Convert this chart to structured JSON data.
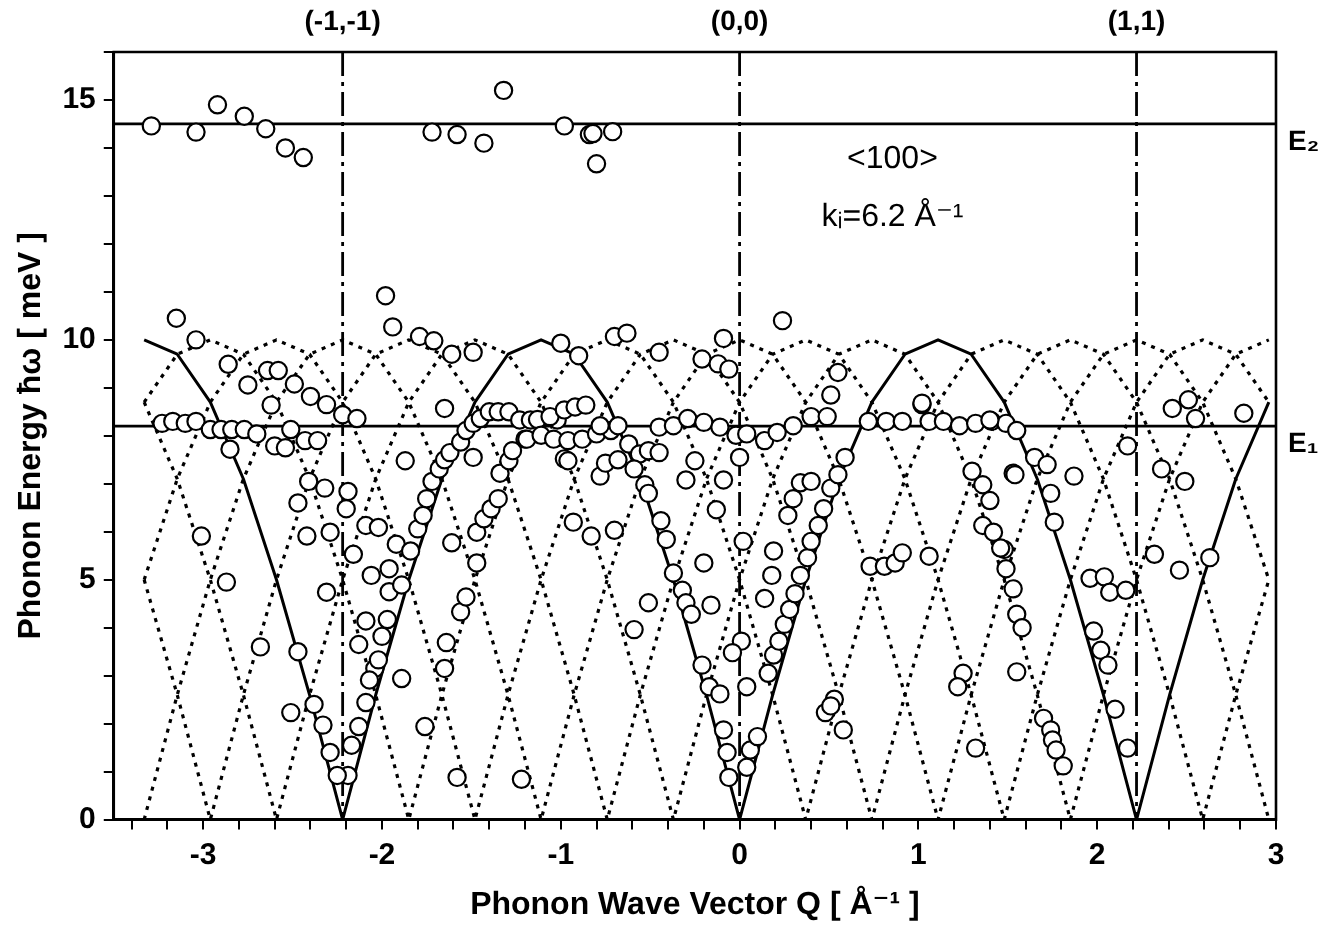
{
  "chart_data": {
    "type": "scatter",
    "xlabel": "Phonon Wave Vector Q [ Å⁻¹ ]",
    "ylabel": "Phonon Energy ħω [ meV ]",
    "annotations": [
      "<100>",
      "kᵢ=6.2 Å⁻¹",
      {
        "text": "(-1,-1)",
        "x": -2.22,
        "y": 16
      },
      {
        "text": "(0,0)",
        "x": 0,
        "y": 16
      },
      {
        "text": "(1,1)",
        "x": 2.22,
        "y": 16
      }
    ],
    "xlim": [
      -3.5,
      3
    ],
    "ylim": [
      0,
      16
    ],
    "xticks": [
      {
        "value": -3.4,
        "label": null
      },
      {
        "value": -3.2,
        "label": null
      },
      -3,
      {
        "value": -2.8,
        "label": null
      },
      {
        "value": -2.6,
        "label": null
      },
      {
        "value": -2.4,
        "label": null
      },
      {
        "value": -2.2,
        "label": null
      },
      -2,
      {
        "value": -1.8,
        "label": null
      },
      {
        "value": -1.6,
        "label": null
      },
      {
        "value": -1.4,
        "label": null
      },
      {
        "value": -1.2,
        "label": null
      },
      -1,
      {
        "value": -0.8,
        "label": null
      },
      {
        "value": -0.6,
        "label": null
      },
      {
        "value": -0.4,
        "label": null
      },
      {
        "value": -0.2,
        "label": null
      },
      0,
      {
        "value": 0.2,
        "label": null
      },
      {
        "value": 0.4,
        "label": null
      },
      {
        "value": 0.6,
        "label": null
      },
      {
        "value": 0.8,
        "label": null
      },
      1,
      {
        "value": 1.2,
        "label": null
      },
      {
        "value": 1.4,
        "label": null
      },
      {
        "value": 1.6,
        "label": null
      },
      {
        "value": 1.8,
        "label": null
      },
      2,
      {
        "value": 2.2,
        "label": null
      },
      {
        "value": 2.4,
        "label": null
      },
      {
        "value": 2.6,
        "label": null
      },
      {
        "value": 2.8,
        "label": null
      },
      3
    ],
    "yticks": [
      0,
      {
        "value": 1,
        "label": null
      },
      {
        "value": 2,
        "label": null
      },
      {
        "value": 3,
        "label": null
      },
      {
        "value": 4,
        "label": null
      },
      5,
      {
        "value": 6,
        "label": null
      },
      {
        "value": 7,
        "label": null
      },
      {
        "value": 8,
        "label": null
      },
      {
        "value": 9,
        "label": null
      },
      10,
      {
        "value": 11,
        "label": null
      },
      {
        "value": 12,
        "label": null
      },
      {
        "value": 13,
        "label": null
      },
      {
        "value": 14,
        "label": null
      },
      15,
      {
        "value": 16,
        "label": null
      }
    ],
    "grid": false,
    "legend": false,
    "marker": "circle",
    "ref_lines": [
      {
        "axis": "x",
        "value": -2.22,
        "line_style": "dashed",
        "color": "#000000"
      },
      {
        "axis": "x",
        "value": 0,
        "line_style": "dashed",
        "color": "#000000"
      },
      {
        "axis": "x",
        "value": 2.22,
        "line_style": "dashed",
        "color": "#000000"
      },
      {
        "axis": "y",
        "value": 14.5,
        "label": "E₂",
        "line_style": "solid",
        "color": "#000000"
      },
      {
        "axis": "y",
        "value": 8.2,
        "label": "E₁",
        "line_style": "solid",
        "color": "#000000"
      }
    ],
    "x": [
      -3.33,
      -3.145,
      -2.96,
      -2.775,
      -2.59,
      -2.405,
      -2.22,
      -2.035,
      -1.85,
      -1.665,
      -1.48,
      -1.295,
      -1.11,
      -0.925,
      -0.74,
      -0.555,
      -0.37,
      -0.185,
      0,
      0.185,
      0.37,
      0.555,
      0.74,
      0.925,
      1.11,
      1.295,
      1.48,
      1.665,
      1.85,
      2.035,
      2.22,
      2.405,
      2.59,
      2.775,
      2.96
    ],
    "series": [
      {
        "type": "scatter",
        "color": "#000000",
        "x": [
          -3.29,
          -3.04,
          -2.92,
          -2.77,
          -2.65,
          -2.54,
          -2.44,
          -1.72,
          -1.58,
          -1.43,
          -1.32,
          -0.98,
          -0.84,
          -0.82,
          -0.71,
          -0.8,
          -3.15,
          -3.04,
          -2.86,
          -2.75,
          -2.64,
          -2.58,
          -2.62,
          -2.49,
          -2.4,
          -2.31,
          -2.22,
          -2.14,
          -1.98,
          -1.94,
          -1.79,
          -1.71,
          -1.61,
          -1.49,
          -1.65,
          -1.0,
          -0.9,
          -0.7,
          -0.63,
          -0.45,
          -0.21,
          -0.12,
          -0.06,
          -0.09,
          0.24,
          0.55,
          0.51,
          1.02,
          2.42,
          2.51,
          2.55,
          2.82,
          -3.23,
          -3.17,
          -3.1,
          -3.04,
          -2.96,
          -2.9,
          -2.84,
          -2.77,
          -2.7,
          -2.6,
          -2.54,
          -2.51,
          -2.43,
          -2.36,
          -2.41,
          -2.32,
          -2.47,
          -2.42,
          -2.29,
          -2.19,
          -2.2,
          -2.31,
          -2.16,
          -2.09,
          -2.02,
          -2.06,
          -2.09,
          -2.13,
          -2.04,
          -2.07,
          -2.09,
          -2.13,
          -2.17,
          -2.19,
          -2.25,
          -2.29,
          -2.33,
          -2.38,
          -2.47,
          -2.51,
          -2.68,
          -2.87,
          -3.01,
          -2.85,
          -1.96,
          -1.97,
          -2.0,
          -2.02,
          -1.96,
          -1.92,
          -1.89,
          -1.84,
          -1.8,
          -1.77,
          -1.75,
          -1.72,
          -1.68,
          -1.65,
          -1.62,
          -1.56,
          -1.53,
          -1.49,
          -1.45,
          -1.4,
          -1.35,
          -1.29,
          -1.23,
          -1.17,
          -1.02,
          -1.89,
          -1.76,
          -1.65,
          -1.64,
          -1.56,
          -1.53,
          -1.47,
          -1.47,
          -1.43,
          -1.39,
          -1.35,
          -1.34,
          -1.29,
          -1.27,
          -1.2,
          -1.49,
          -1.61,
          -1.58,
          -1.22,
          -0.98,
          -1.87,
          -1.13,
          -1.06,
          -0.98,
          -0.92,
          -0.86,
          -1.19,
          -1.11,
          -1.04,
          -0.96,
          -0.88,
          -0.8,
          -0.72,
          -0.78,
          -0.68,
          -0.62,
          -0.56,
          -0.51,
          -0.45,
          -0.45,
          -0.37,
          -0.29,
          -0.2,
          -0.11,
          -0.02,
          0.04,
          0.14,
          0.21,
          0.3,
          0.4,
          0.49,
          0.72,
          0.82,
          0.91,
          1.06,
          1.14,
          1.23,
          1.32,
          1.41,
          1.49,
          1.02,
          -0.96,
          -0.78,
          -0.75,
          -0.68,
          -0.93,
          -0.83,
          -0.7,
          -0.59,
          -0.53,
          -0.51,
          -0.44,
          -0.41,
          -0.37,
          -0.32,
          -0.3,
          -0.27,
          -0.21,
          -0.17,
          -0.11,
          -0.09,
          -0.07,
          -0.06,
          0.04,
          0.06,
          0.1,
          0.04,
          0.01,
          -0.04,
          -0.16,
          -0.2,
          -0.13,
          -0.25,
          -0.3,
          -0.09,
          0.0,
          0.02,
          0.14,
          0.16,
          0.19,
          0.22,
          0.25,
          0.28,
          0.31,
          0.34,
          0.38,
          0.4,
          0.44,
          0.47,
          0.51,
          0.55,
          0.59,
          0.3,
          0.34,
          0.4,
          0.19,
          0.27,
          0.18,
          0.48,
          0.53,
          0.58,
          0.51,
          0.73,
          0.81,
          0.87,
          0.91,
          1.06,
          -0.51,
          -0.59,
          1.25,
          1.22,
          1.32,
          1.3,
          1.36,
          1.36,
          1.42,
          1.48,
          1.49,
          1.53,
          1.55,
          1.58,
          1.55,
          1.53,
          1.4,
          1.55,
          1.65,
          1.72,
          1.74,
          1.76,
          1.54,
          1.87,
          1.4,
          1.46,
          1.96,
          2.04,
          2.07,
          2.16,
          1.98,
          2.02,
          2.06,
          2.1,
          2.17,
          1.7,
          1.74,
          1.75,
          1.77,
          1.81,
          2.17,
          2.36,
          2.49,
          2.32,
          2.46,
          2.63
        ],
        "values": [
          14.46,
          14.33,
          14.9,
          14.66,
          14.4,
          14.0,
          13.8,
          14.33,
          14.28,
          14.1,
          15.2,
          14.46,
          14.28,
          14.3,
          14.34,
          13.67,
          10.45,
          10.0,
          9.49,
          9.06,
          9.36,
          9.36,
          8.64,
          9.08,
          8.82,
          8.65,
          8.44,
          8.36,
          10.92,
          10.27,
          10.07,
          9.98,
          9.7,
          9.74,
          8.57,
          9.93,
          9.67,
          10.07,
          10.14,
          9.74,
          9.6,
          9.5,
          9.39,
          10.03,
          10.4,
          9.32,
          8.85,
          8.65,
          8.57,
          8.75,
          8.36,
          8.47,
          8.26,
          8.3,
          8.26,
          8.3,
          8.13,
          8.13,
          8.13,
          8.13,
          8.04,
          7.79,
          7.75,
          8.13,
          7.9,
          7.9,
          7.05,
          6.91,
          6.6,
          5.91,
          5.99,
          6.84,
          6.48,
          4.74,
          5.53,
          6.13,
          6.09,
          5.09,
          4.14,
          3.65,
          3.15,
          2.91,
          2.44,
          1.94,
          1.55,
          0.92,
          0.92,
          1.4,
          1.97,
          2.4,
          3.5,
          2.23,
          3.6,
          4.95,
          5.91,
          7.72,
          4.75,
          4.17,
          3.82,
          3.33,
          5.23,
          5.74,
          4.89,
          5.6,
          6.06,
          6.34,
          6.69,
          7.05,
          7.31,
          7.5,
          7.65,
          7.87,
          8.11,
          8.26,
          8.36,
          8.5,
          8.5,
          8.5,
          8.33,
          8.33,
          8.33,
          2.94,
          1.94,
          3.15,
          3.69,
          4.33,
          4.64,
          5.35,
          5.99,
          6.27,
          6.48,
          6.69,
          7.22,
          7.48,
          7.69,
          7.93,
          7.55,
          5.77,
          0.88,
          0.84,
          7.52,
          7.48,
          8.34,
          8.4,
          8.54,
          8.6,
          8.64,
          7.93,
          8.01,
          7.93,
          7.9,
          7.93,
          8.04,
          8.11,
          8.21,
          8.21,
          7.83,
          7.62,
          7.69,
          7.65,
          8.18,
          8.21,
          8.36,
          8.28,
          8.18,
          8.01,
          8.04,
          7.9,
          8.07,
          8.21,
          8.4,
          8.4,
          8.3,
          8.3,
          8.3,
          8.3,
          8.3,
          8.21,
          8.26,
          8.3,
          8.26,
          8.68,
          7.48,
          7.16,
          7.43,
          7.5,
          6.2,
          5.91,
          6.03,
          7.31,
          6.98,
          6.8,
          6.23,
          5.84,
          5.14,
          4.78,
          4.52,
          4.28,
          3.22,
          2.77,
          2.62,
          1.87,
          1.4,
          0.88,
          1.09,
          1.45,
          1.73,
          2.77,
          3.72,
          3.48,
          4.47,
          5.35,
          6.46,
          7.48,
          7.08,
          7.08,
          7.55,
          5.8,
          4.61,
          3.05,
          3.43,
          3.72,
          4.07,
          4.38,
          4.71,
          5.09,
          5.46,
          5.8,
          6.13,
          6.48,
          6.91,
          7.19,
          7.55,
          6.69,
          7.02,
          7.05,
          5.6,
          6.34,
          5.09,
          2.23,
          2.51,
          1.87,
          2.37,
          5.28,
          5.28,
          5.35,
          5.56,
          5.49,
          4.52,
          3.96,
          3.05,
          2.77,
          1.49,
          7.26,
          6.98,
          6.13,
          5.99,
          5.63,
          5.23,
          4.81,
          4.28,
          4.0,
          3.08,
          7.22,
          8.33,
          8.11,
          7.55,
          7.4,
          6.8,
          6.2,
          7.19,
          7.16,
          6.65,
          5.66,
          5.03,
          5.06,
          4.74,
          4.78,
          3.93,
          3.53,
          3.22,
          2.3,
          1.49,
          2.11,
          1.87,
          1.66,
          1.45,
          1.12,
          7.79,
          7.31,
          7.05,
          5.53,
          5.2,
          5.46
        ]
      },
      {
        "type": "line",
        "color": "#000000",
        "line_style": "solid",
        "marker": "none",
        "values": [
          10,
          9.7,
          8.7,
          7.1,
          5,
          2.6,
          0,
          2.6,
          5,
          7.1,
          8.7,
          9.7,
          10,
          9.7,
          8.7,
          7.1,
          5,
          2.6,
          0,
          2.6,
          5,
          7.1,
          8.7,
          9.7,
          10,
          9.7,
          8.7,
          7.1,
          5,
          2.6,
          0,
          2.6,
          5,
          7.1,
          8.7
        ]
      },
      {
        "type": "line",
        "color": "#000000",
        "line_style": "dotted",
        "marker": "none",
        "values": [
          8.7,
          9.7,
          10,
          9.7,
          8.7,
          7.1,
          5,
          2.6,
          0,
          2.6,
          5,
          7.1,
          8.7,
          9.7,
          10,
          9.7,
          8.7,
          7.1,
          5,
          2.6,
          0,
          2.6,
          5,
          7.1,
          8.7,
          9.7,
          10,
          9.7,
          8.7,
          7.1,
          5,
          2.6,
          0,
          2.6,
          5
        ]
      },
      {
        "type": "line",
        "color": "#000000",
        "line_style": "dotted",
        "marker": "none",
        "values": [
          5,
          7.1,
          8.7,
          9.7,
          10,
          9.7,
          8.7,
          7.1,
          5,
          2.6,
          0,
          2.6,
          5,
          7.1,
          8.7,
          9.7,
          10,
          9.7,
          8.7,
          7.1,
          5,
          2.6,
          0,
          2.6,
          5,
          7.1,
          8.7,
          9.7,
          10,
          9.7,
          8.7,
          7.1,
          5,
          2.6,
          0
        ]
      },
      {
        "type": "line",
        "color": "#000000",
        "line_style": "dotted",
        "marker": "none",
        "values": [
          0,
          2.6,
          5,
          7.1,
          8.7,
          9.7,
          10,
          9.7,
          8.7,
          7.1,
          5,
          2.6,
          0,
          2.6,
          5,
          7.1,
          8.7,
          9.7,
          10,
          9.7,
          8.7,
          7.1,
          5,
          2.6,
          0,
          2.6,
          5,
          7.1,
          8.7,
          9.7,
          10,
          9.7,
          8.7,
          7.1,
          5
        ]
      },
      {
        "type": "line",
        "color": "#000000",
        "line_style": "dotted",
        "marker": "none",
        "values": [
          5,
          2.6,
          0,
          2.6,
          5,
          7.1,
          8.7,
          9.7,
          10,
          9.7,
          8.7,
          7.1,
          5,
          2.6,
          0,
          2.6,
          5,
          7.1,
          8.7,
          9.7,
          10,
          9.7,
          8.7,
          7.1,
          5,
          2.6,
          0,
          2.6,
          5,
          7.1,
          8.7,
          9.7,
          10,
          9.7,
          8.7
        ]
      },
      {
        "type": "line",
        "color": "#000000",
        "line_style": "dotted",
        "marker": "none",
        "values": [
          8.7,
          7.1,
          5,
          2.6,
          0,
          2.6,
          5,
          7.1,
          8.7,
          9.7,
          10,
          9.7,
          8.7,
          7.1,
          5,
          2.6,
          0,
          2.6,
          5,
          7.1,
          8.7,
          9.7,
          10,
          9.7,
          8.7,
          7.1,
          5,
          2.6,
          0,
          2.6,
          5,
          7.1,
          8.7,
          9.7,
          10
        ]
      }
    ]
  }
}
